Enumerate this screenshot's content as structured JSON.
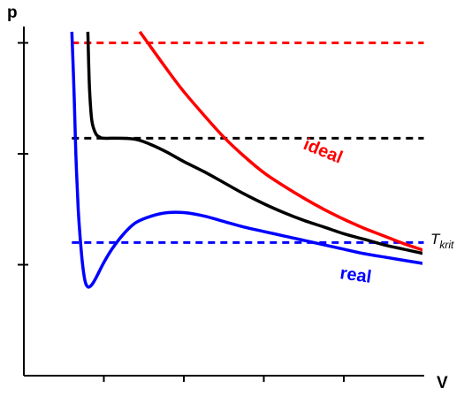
{
  "chart_data": {
    "type": "line",
    "xlabel": "V",
    "ylabel": "p",
    "xlim": [
      0,
      5
    ],
    "ylim": [
      0,
      3.1
    ],
    "xticks": [
      1,
      2,
      3,
      4
    ],
    "yticks": [
      1,
      2,
      3
    ],
    "series": [
      {
        "name": "ideal",
        "color": "#ff0000",
        "style": "solid",
        "points": [
          [
            1.45,
            3.1
          ],
          [
            1.6,
            2.95
          ],
          [
            1.8,
            2.75
          ],
          [
            2.0,
            2.56
          ],
          [
            2.25,
            2.35
          ],
          [
            2.5,
            2.15
          ],
          [
            2.75,
            1.98
          ],
          [
            3.0,
            1.83
          ],
          [
            3.25,
            1.71
          ],
          [
            3.5,
            1.6
          ],
          [
            3.75,
            1.5
          ],
          [
            4.0,
            1.41
          ],
          [
            4.25,
            1.33
          ],
          [
            4.5,
            1.26
          ],
          [
            4.75,
            1.19
          ],
          [
            5.0,
            1.13
          ]
        ]
      },
      {
        "name": "T_krit",
        "color": "#000000",
        "style": "solid",
        "points": [
          [
            0.8,
            3.1
          ],
          [
            0.82,
            2.6
          ],
          [
            0.85,
            2.3
          ],
          [
            0.9,
            2.18
          ],
          [
            0.95,
            2.15
          ],
          [
            1.0,
            2.14
          ],
          [
            1.2,
            2.14
          ],
          [
            1.4,
            2.13
          ],
          [
            1.6,
            2.08
          ],
          [
            1.8,
            2.01
          ],
          [
            2.0,
            1.93
          ],
          [
            2.25,
            1.84
          ],
          [
            2.5,
            1.74
          ],
          [
            2.75,
            1.64
          ],
          [
            3.0,
            1.55
          ],
          [
            3.25,
            1.47
          ],
          [
            3.5,
            1.4
          ],
          [
            3.75,
            1.34
          ],
          [
            4.0,
            1.28
          ],
          [
            4.25,
            1.23
          ],
          [
            4.5,
            1.18
          ],
          [
            4.75,
            1.14
          ],
          [
            5.0,
            1.1
          ]
        ]
      },
      {
        "name": "real",
        "color": "#0000ff",
        "style": "solid",
        "points": [
          [
            0.6,
            3.1
          ],
          [
            0.63,
            2.5
          ],
          [
            0.65,
            2.0
          ],
          [
            0.68,
            1.5
          ],
          [
            0.72,
            1.1
          ],
          [
            0.76,
            0.87
          ],
          [
            0.8,
            0.8
          ],
          [
            0.85,
            0.82
          ],
          [
            0.9,
            0.88
          ],
          [
            1.0,
            1.02
          ],
          [
            1.1,
            1.14
          ],
          [
            1.25,
            1.28
          ],
          [
            1.4,
            1.38
          ],
          [
            1.6,
            1.44
          ],
          [
            1.8,
            1.47
          ],
          [
            2.0,
            1.47
          ],
          [
            2.25,
            1.44
          ],
          [
            2.5,
            1.39
          ],
          [
            2.75,
            1.34
          ],
          [
            3.0,
            1.3
          ],
          [
            3.25,
            1.26
          ],
          [
            3.5,
            1.22
          ],
          [
            3.75,
            1.18
          ],
          [
            4.0,
            1.14
          ],
          [
            4.25,
            1.1
          ],
          [
            4.5,
            1.07
          ],
          [
            4.75,
            1.04
          ],
          [
            5.0,
            1.01
          ]
        ]
      }
    ],
    "reference_lines": [
      {
        "y": 3.0,
        "x_from": 0.6,
        "x_to": 5.0,
        "color": "#ff0000",
        "style": "dashed"
      },
      {
        "y": 2.14,
        "x_from": 0.6,
        "x_to": 5.0,
        "color": "#000000",
        "style": "dashed"
      },
      {
        "y": 1.2,
        "x_from": 0.6,
        "x_to": 5.0,
        "color": "#0000ff",
        "style": "dashed"
      }
    ],
    "labels": {
      "ideal": {
        "text": "ideal",
        "color": "#ff0000"
      },
      "real": {
        "text": "real",
        "color": "#0000ff"
      },
      "tkrit": {
        "main": "T",
        "sub": "krit",
        "color": "#000000"
      }
    }
  }
}
